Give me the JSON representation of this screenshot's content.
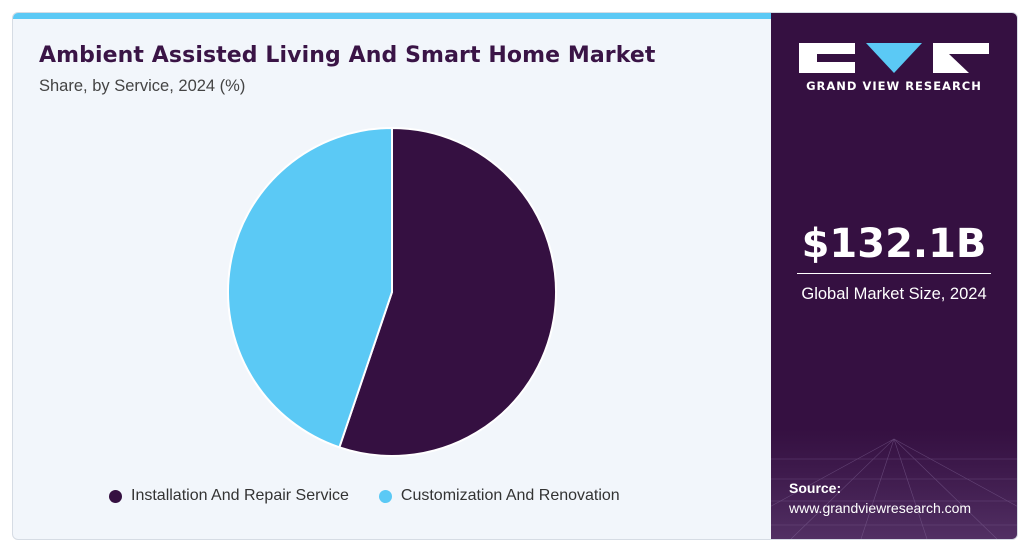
{
  "header": {
    "title": "Ambient Assisted Living And Smart Home Market",
    "subtitle": "Share, by Service, 2024 (%)"
  },
  "brand": {
    "name": "GRAND VIEW RESEARCH",
    "logo_icon": "gvr-logo-icon"
  },
  "sidebar": {
    "market_value": "$132.1B",
    "market_label": "Global Market Size, 2024",
    "source_label": "Source:",
    "source_url": "www.grandviewresearch.com"
  },
  "colors": {
    "accent_bar": "#5bc9f5",
    "panel": "#351041",
    "series_dark": "#351041",
    "series_light": "#5bc9f5"
  },
  "chart_data": {
    "type": "pie",
    "title": "Ambient Assisted Living And Smart Home Market",
    "subtitle": "Share, by Service, 2024 (%)",
    "start_angle_deg": 0,
    "direction": "clockwise",
    "legend_position": "bottom",
    "slices": [
      {
        "label": "Installation And Repair Service",
        "value": 55.2,
        "color": "#351041"
      },
      {
        "label": "Customization And Renovation",
        "value": 44.8,
        "color": "#5bc9f5"
      }
    ]
  }
}
